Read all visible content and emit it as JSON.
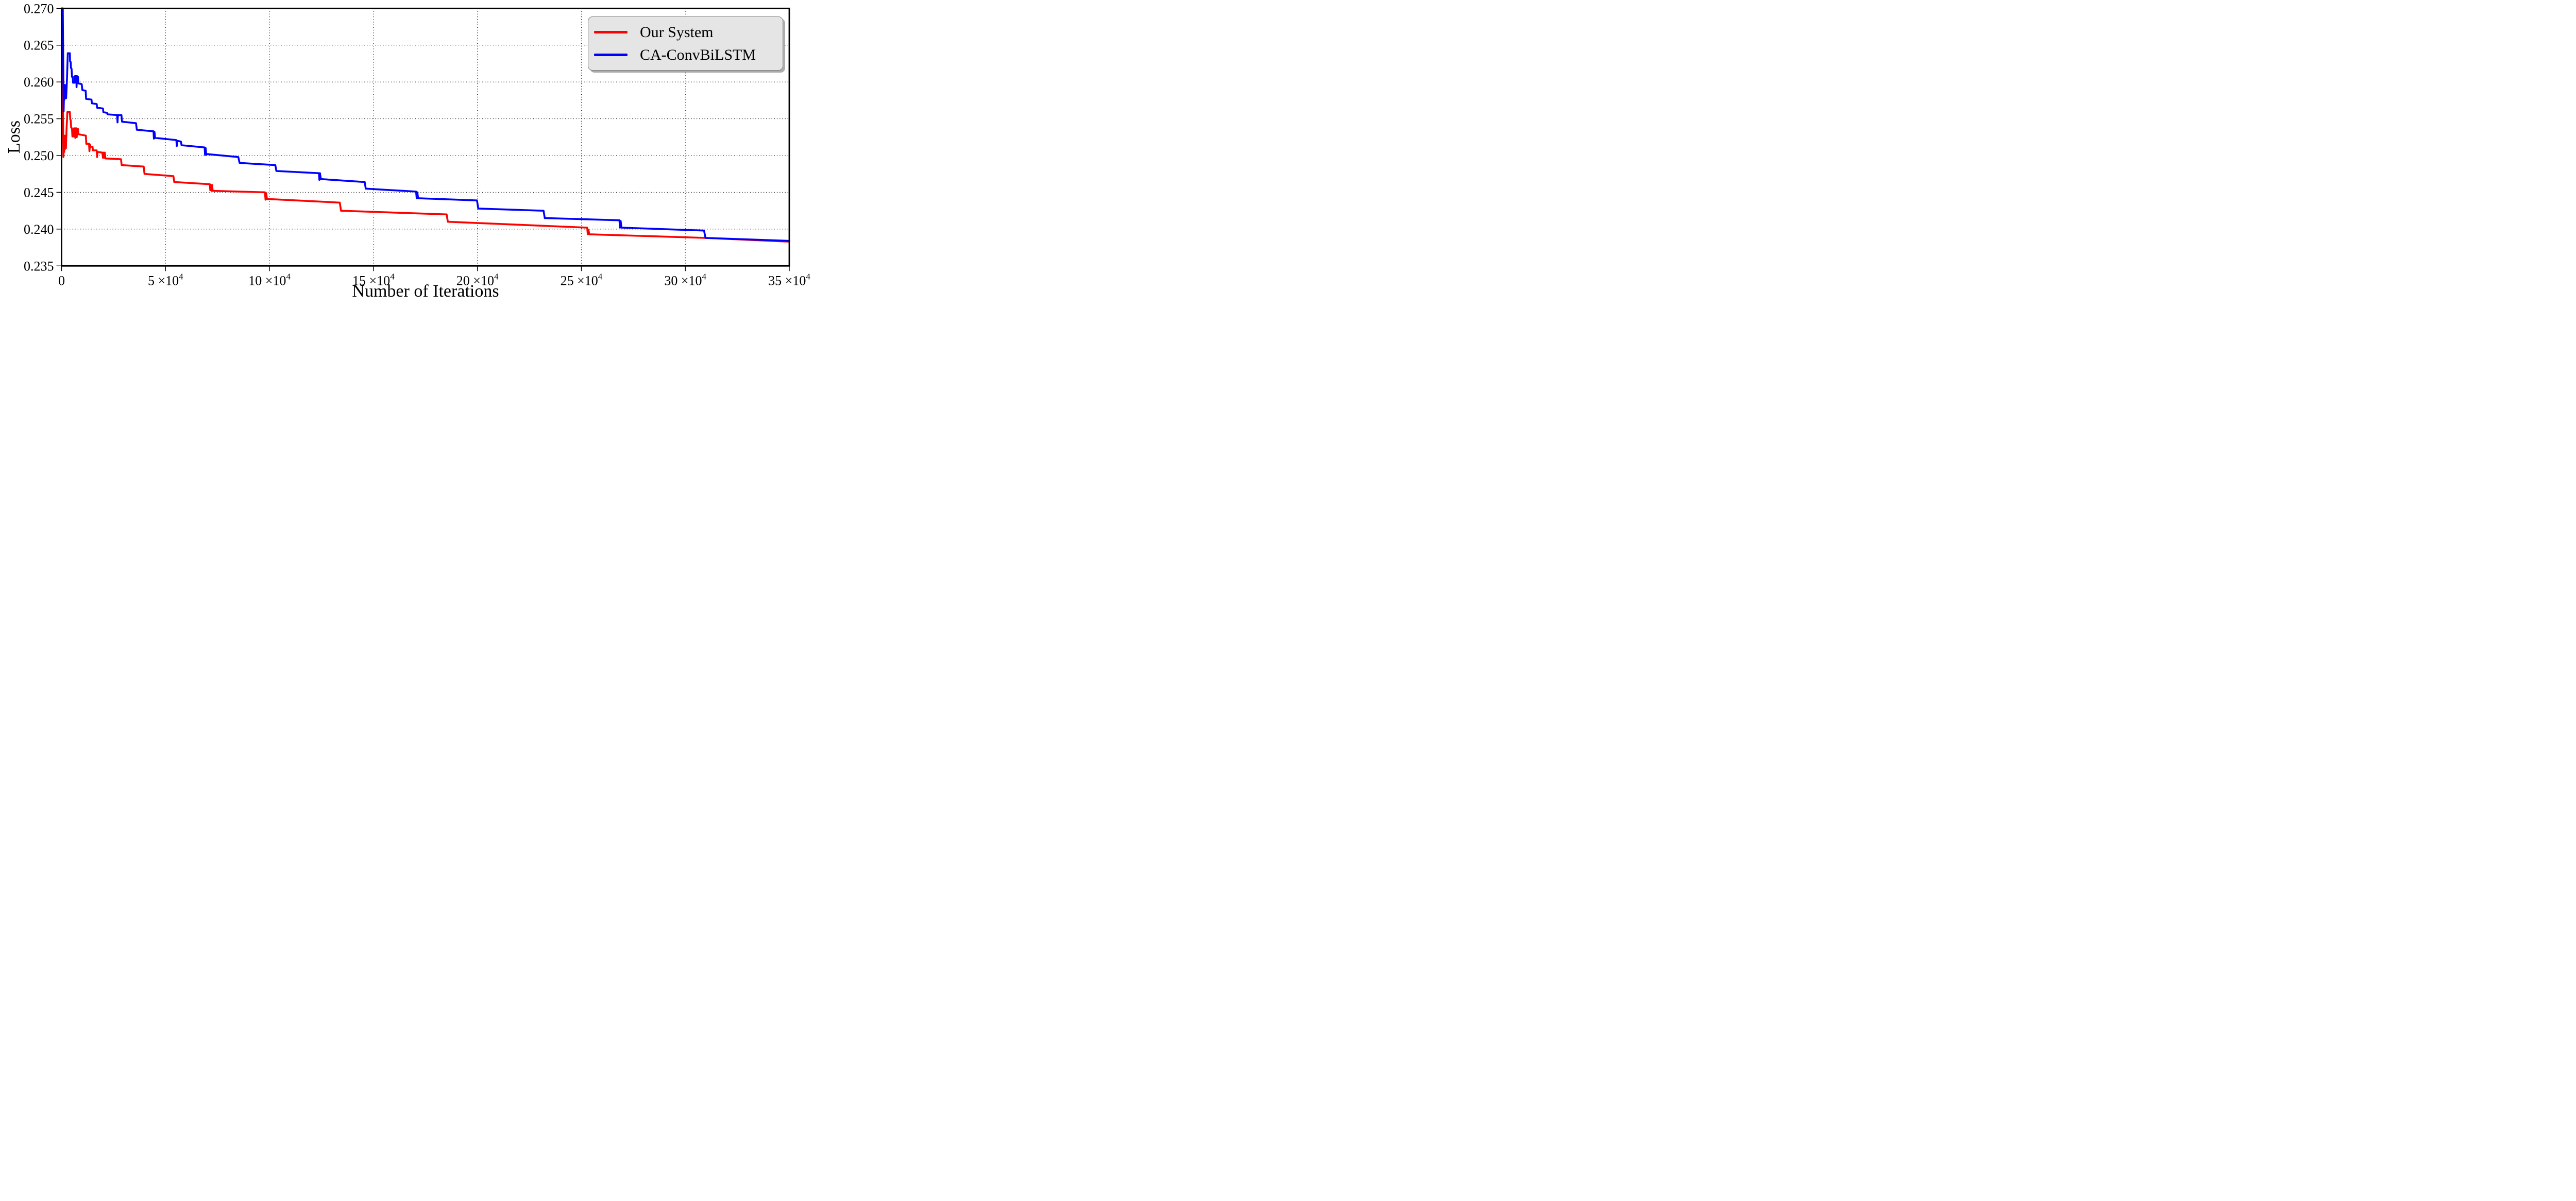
{
  "chart_data": {
    "type": "line",
    "title": "",
    "xlabel": "Number of Iterations",
    "ylabel": "Loss",
    "xlim": [
      0,
      350000
    ],
    "ylim": [
      0.235,
      0.27
    ],
    "grid": "dotted",
    "legend_position": "upper right",
    "legend_background": "#e5e5e5",
    "legend_border": "#7f7f7f",
    "axis_color": "#000000",
    "x_ticks": [
      {
        "at": 0,
        "label": "0"
      },
      {
        "at": 50000,
        "label": "5 ×10^4"
      },
      {
        "at": 100000,
        "label": "10 ×10^4"
      },
      {
        "at": 150000,
        "label": "15 ×10^4"
      },
      {
        "at": 200000,
        "label": "20 ×10^4"
      },
      {
        "at": 250000,
        "label": "25 ×10^4"
      },
      {
        "at": 300000,
        "label": "30 ×10^4"
      },
      {
        "at": 350000,
        "label": "35 ×10^4"
      }
    ],
    "y_ticks": [
      {
        "at": 0.27,
        "label": "0.270"
      },
      {
        "at": 0.265,
        "label": "0.265"
      },
      {
        "at": 0.26,
        "label": "0.260"
      },
      {
        "at": 0.255,
        "label": "0.255"
      },
      {
        "at": 0.25,
        "label": "0.250"
      },
      {
        "at": 0.245,
        "label": "0.245"
      },
      {
        "at": 0.24,
        "label": "0.240"
      },
      {
        "at": 0.235,
        "label": "0.235"
      }
    ],
    "series": [
      {
        "name": "Our System",
        "color": "#ff0000",
        "points": [
          [
            0,
            0.27
          ],
          [
            300,
            0.27
          ],
          [
            900,
            0.2498
          ],
          [
            1100,
            0.2514
          ],
          [
            1300,
            0.2505
          ],
          [
            1500,
            0.2527
          ],
          [
            1700,
            0.2509
          ],
          [
            1900,
            0.2527
          ],
          [
            2100,
            0.251
          ],
          [
            2400,
            0.2537
          ],
          [
            2800,
            0.2559
          ],
          [
            4000,
            0.2559
          ],
          [
            4200,
            0.2549
          ],
          [
            4400,
            0.2548
          ],
          [
            4600,
            0.2538
          ],
          [
            5000,
            0.2537
          ],
          [
            5200,
            0.2526
          ],
          [
            5800,
            0.2526
          ],
          [
            6000,
            0.2537
          ],
          [
            6400,
            0.2537
          ],
          [
            6600,
            0.2524
          ],
          [
            6800,
            0.2537
          ],
          [
            7200,
            0.2537
          ],
          [
            7300,
            0.2525
          ],
          [
            7500,
            0.2536
          ],
          [
            7900,
            0.2536
          ],
          [
            8100,
            0.2529
          ],
          [
            9900,
            0.2528
          ],
          [
            11700,
            0.2527
          ],
          [
            11900,
            0.2516
          ],
          [
            13200,
            0.2516
          ],
          [
            13400,
            0.2506
          ],
          [
            13700,
            0.2515
          ],
          [
            13900,
            0.2512
          ],
          [
            14900,
            0.2512
          ],
          [
            15100,
            0.2507
          ],
          [
            16900,
            0.2507
          ],
          [
            17100,
            0.2498
          ],
          [
            17300,
            0.2505
          ],
          [
            19600,
            0.2504
          ],
          [
            19900,
            0.2497
          ],
          [
            20200,
            0.2504
          ],
          [
            20500,
            0.2497
          ],
          [
            20800,
            0.2504
          ],
          [
            21100,
            0.2496
          ],
          [
            28600,
            0.2495
          ],
          [
            28900,
            0.2487
          ],
          [
            39500,
            0.2485
          ],
          [
            39900,
            0.2475
          ],
          [
            53800,
            0.2472
          ],
          [
            54200,
            0.2464
          ],
          [
            71300,
            0.2461
          ],
          [
            71500,
            0.2453
          ],
          [
            71800,
            0.246
          ],
          [
            72100,
            0.2452
          ],
          [
            72400,
            0.246
          ],
          [
            72700,
            0.2452
          ],
          [
            97800,
            0.245
          ],
          [
            98100,
            0.244
          ],
          [
            98400,
            0.2449
          ],
          [
            98800,
            0.2441
          ],
          [
            133800,
            0.2436
          ],
          [
            134400,
            0.2425
          ],
          [
            185200,
            0.242
          ],
          [
            185800,
            0.241
          ],
          [
            252800,
            0.2402
          ],
          [
            253100,
            0.2393
          ],
          [
            253400,
            0.2399
          ],
          [
            253800,
            0.2393
          ],
          [
            310000,
            0.2388
          ],
          [
            350000,
            0.2383
          ]
        ]
      },
      {
        "name": "CA-ConvBiLSTM",
        "color": "#0000ff",
        "points": [
          [
            0,
            0.27
          ],
          [
            600,
            0.27
          ],
          [
            1000,
            0.256
          ],
          [
            1200,
            0.2584
          ],
          [
            1400,
            0.2576
          ],
          [
            1600,
            0.2596
          ],
          [
            1800,
            0.258
          ],
          [
            2200,
            0.2578
          ],
          [
            2600,
            0.2604
          ],
          [
            3000,
            0.2639
          ],
          [
            4000,
            0.2639
          ],
          [
            4100,
            0.2628
          ],
          [
            4400,
            0.2627
          ],
          [
            4500,
            0.2619
          ],
          [
            4800,
            0.2618
          ],
          [
            5000,
            0.2607
          ],
          [
            5400,
            0.2607
          ],
          [
            5500,
            0.2599
          ],
          [
            6400,
            0.2599
          ],
          [
            6500,
            0.2608
          ],
          [
            7100,
            0.2608
          ],
          [
            7200,
            0.2593
          ],
          [
            7400,
            0.2608
          ],
          [
            7900,
            0.2607
          ],
          [
            8100,
            0.2598
          ],
          [
            9700,
            0.2597
          ],
          [
            10000,
            0.2589
          ],
          [
            11600,
            0.2588
          ],
          [
            11800,
            0.2577
          ],
          [
            14400,
            0.2576
          ],
          [
            14600,
            0.2571
          ],
          [
            16900,
            0.257
          ],
          [
            17100,
            0.2565
          ],
          [
            19900,
            0.2564
          ],
          [
            20100,
            0.2559
          ],
          [
            21900,
            0.2558
          ],
          [
            22100,
            0.2556
          ],
          [
            26700,
            0.2555
          ],
          [
            26900,
            0.2545
          ],
          [
            27100,
            0.2555
          ],
          [
            28800,
            0.2555
          ],
          [
            29100,
            0.2546
          ],
          [
            35800,
            0.2544
          ],
          [
            36200,
            0.2535
          ],
          [
            44200,
            0.2533
          ],
          [
            44400,
            0.2523
          ],
          [
            44700,
            0.2532
          ],
          [
            45000,
            0.2524
          ],
          [
            55200,
            0.2521
          ],
          [
            55400,
            0.2513
          ],
          [
            55700,
            0.252
          ],
          [
            57400,
            0.2519
          ],
          [
            57700,
            0.2514
          ],
          [
            68800,
            0.2511
          ],
          [
            69000,
            0.2501
          ],
          [
            69300,
            0.251
          ],
          [
            69600,
            0.2501
          ],
          [
            70000,
            0.2502
          ],
          [
            85000,
            0.2498
          ],
          [
            85600,
            0.249
          ],
          [
            102800,
            0.2487
          ],
          [
            103300,
            0.2479
          ],
          [
            123800,
            0.2476
          ],
          [
            124000,
            0.2467
          ],
          [
            124300,
            0.2476
          ],
          [
            124700,
            0.2468
          ],
          [
            145800,
            0.2464
          ],
          [
            146300,
            0.2455
          ],
          [
            170500,
            0.2451
          ],
          [
            170800,
            0.2442
          ],
          [
            171100,
            0.245
          ],
          [
            171500,
            0.2442
          ],
          [
            199800,
            0.2439
          ],
          [
            200400,
            0.2428
          ],
          [
            231800,
            0.2425
          ],
          [
            232400,
            0.2415
          ],
          [
            268300,
            0.2412
          ],
          [
            268600,
            0.2402
          ],
          [
            268900,
            0.2411
          ],
          [
            269300,
            0.2402
          ],
          [
            309000,
            0.2398
          ],
          [
            309700,
            0.2388
          ],
          [
            350000,
            0.2384
          ]
        ]
      }
    ]
  }
}
